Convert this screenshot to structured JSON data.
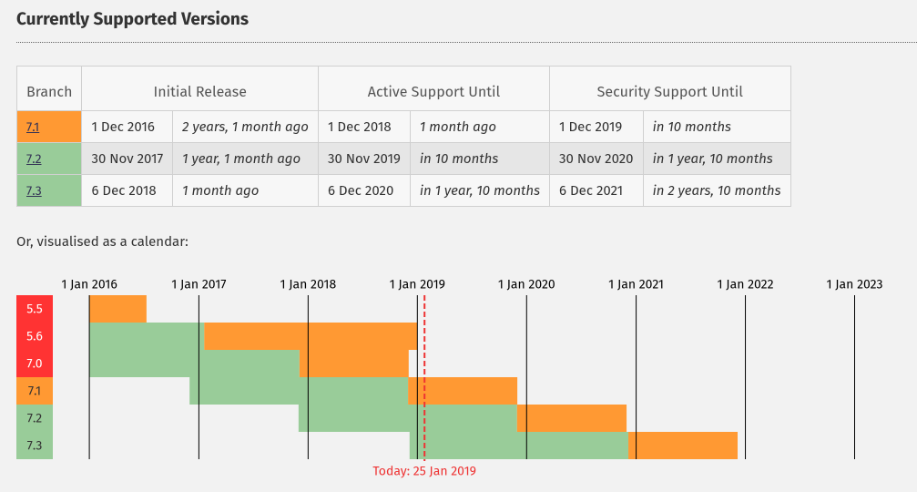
{
  "heading": "Currently Supported Versions",
  "table": {
    "headers": [
      "Branch",
      "Initial Release",
      "Active Support Until",
      "Security Support Until"
    ],
    "rows": [
      {
        "branch": "7.1",
        "color": "#ff9933",
        "cells": [
          "1 Dec 2016",
          "2 years, 1 month ago",
          "1 Dec 2018",
          "1 month ago",
          "1 Dec 2019",
          "in 10 months"
        ]
      },
      {
        "branch": "7.2",
        "color": "#99cc99",
        "cells": [
          "30 Nov 2017",
          "1 year, 1 month ago",
          "30 Nov 2019",
          "in 10 months",
          "30 Nov 2020",
          "in 1 year, 10 months"
        ]
      },
      {
        "branch": "7.3",
        "color": "#99cc99",
        "cells": [
          "6 Dec 2018",
          "1 month ago",
          "6 Dec 2020",
          "in 1 year, 10 months",
          "6 Dec 2021",
          "in 2 years, 10 months"
        ]
      }
    ]
  },
  "caption": "Or, visualised as a calendar:",
  "calendar": {
    "xlim": [
      "2015-09-01",
      "2023-07-01"
    ],
    "xticks": [
      {
        "value": "2016-01-01",
        "label": "1 Jan 2016"
      },
      {
        "value": "2017-01-01",
        "label": "1 Jan 2017"
      },
      {
        "value": "2018-01-01",
        "label": "1 Jan 2018"
      },
      {
        "value": "2019-01-01",
        "label": "1 Jan 2019"
      },
      {
        "value": "2020-01-01",
        "label": "1 Jan 2020"
      },
      {
        "value": "2021-01-01",
        "label": "1 Jan 2021"
      },
      {
        "value": "2022-01-01",
        "label": "1 Jan 2022"
      },
      {
        "value": "2023-01-01",
        "label": "1 Jan 2023"
      }
    ],
    "today": {
      "value": "2019-01-25",
      "label": "Today: 25 Jan 2019"
    },
    "active_color": "#99cc99",
    "security_color": "#ff9933",
    "branches": [
      {
        "name": "5.5",
        "color": "#ff3333",
        "active": null,
        "security": [
          "2016-01-01",
          "2016-07-10"
        ]
      },
      {
        "name": "5.6",
        "color": "#ff3333",
        "active": [
          "2016-01-01",
          "2017-01-19"
        ],
        "security": [
          "2017-01-19",
          "2018-12-31"
        ]
      },
      {
        "name": "7.0",
        "color": "#ff3333",
        "active": [
          "2016-01-01",
          "2017-12-03"
        ],
        "security": [
          "2017-12-03",
          "2018-12-03"
        ]
      },
      {
        "name": "7.1",
        "color": "#ff9933",
        "active": [
          "2016-12-01",
          "2018-12-01"
        ],
        "security": [
          "2018-12-01",
          "2019-12-01"
        ]
      },
      {
        "name": "7.2",
        "color": "#99cc99",
        "active": [
          "2017-11-30",
          "2019-11-30"
        ],
        "security": [
          "2019-11-30",
          "2020-11-30"
        ]
      },
      {
        "name": "7.3",
        "color": "#99cc99",
        "active": [
          "2018-12-06",
          "2020-12-06"
        ],
        "security": [
          "2020-12-06",
          "2021-12-06"
        ]
      }
    ]
  }
}
